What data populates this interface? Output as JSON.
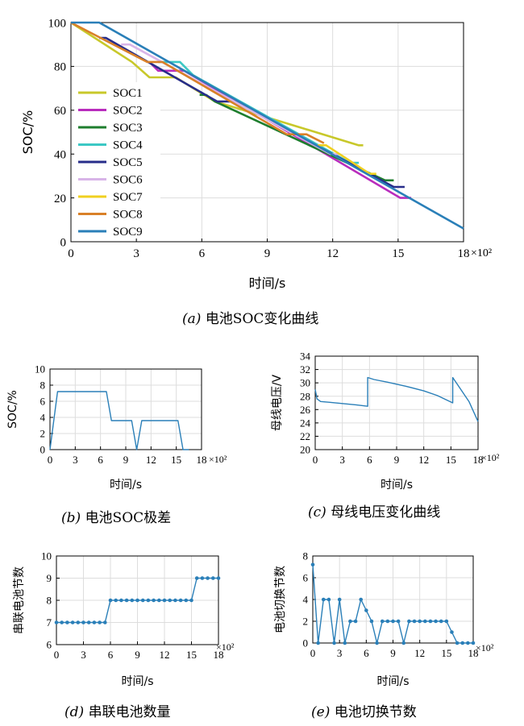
{
  "captions": {
    "a": {
      "tag": "(a)",
      "text": "电池SOC变化曲线"
    },
    "b": {
      "tag": "(b)",
      "text": "电池SOC极差"
    },
    "c": {
      "tag": "(c)",
      "text": "母线电压变化曲线"
    },
    "d": {
      "tag": "(d)",
      "text": "串联电池数量"
    },
    "e": {
      "tag": "(e)",
      "text": "电池切换节数"
    }
  },
  "colors": {
    "SOC1": "#c8c82a",
    "SOC2": "#b92dbd",
    "SOC3": "#1e7e2e",
    "SOC4": "#3cc8c4",
    "SOC5": "#272d8a",
    "SOC6": "#d8b4e8",
    "SOC7": "#f0d020",
    "SOC8": "#d98028",
    "SOC9": "#2a7fb8",
    "line": "#2a7fb8"
  },
  "chart_data": [
    {
      "id": "a",
      "type": "line",
      "xlabel": "时间/s",
      "ylabel": "SOC/%",
      "x_multiplier": "×10²",
      "xlim": [
        0,
        18
      ],
      "ylim": [
        0,
        100
      ],
      "xticks": [
        0,
        3,
        6,
        9,
        12,
        15,
        18
      ],
      "yticks": [
        0,
        20,
        40,
        60,
        80,
        100
      ],
      "grid": true,
      "legend": "upper-left",
      "series": [
        {
          "name": "SOC1",
          "x": [
            0,
            2.8,
            3.6,
            4.8,
            6.6,
            13.2,
            13.4
          ],
          "y": [
            100,
            82,
            75,
            75,
            64,
            44,
            44
          ]
        },
        {
          "name": "SOC2",
          "x": [
            3.6,
            4.0,
            5.2,
            15.1,
            15.6
          ],
          "y": [
            82,
            78,
            78,
            20,
            20
          ]
        },
        {
          "name": "SOC3",
          "x": [
            5.9,
            6.2,
            6.6,
            14.4,
            14.8
          ],
          "y": [
            67,
            67,
            64,
            28,
            28
          ]
        },
        {
          "name": "SOC4",
          "x": [
            4.0,
            5.0,
            5.6,
            12.8,
            13.2
          ],
          "y": [
            82,
            82,
            76,
            36,
            36
          ]
        },
        {
          "name": "SOC5",
          "x": [
            1.3,
            1.6,
            6.7,
            7.5,
            14.8,
            15.3
          ],
          "y": [
            93,
            93,
            64,
            64,
            25,
            25
          ]
        },
        {
          "name": "SOC6",
          "x": [
            2.3,
            2.7,
            11.9,
            12.3
          ],
          "y": [
            90,
            90,
            40,
            40
          ]
        },
        {
          "name": "SOC7",
          "x": [
            11.3,
            11.7,
            13.7,
            14.0
          ],
          "y": [
            44,
            44,
            31,
            31
          ]
        },
        {
          "name": "SOC8",
          "x": [
            0,
            3.5,
            4.2,
            9.9,
            10.8,
            11.6
          ],
          "y": [
            100,
            82,
            82,
            49,
            49,
            45
          ]
        },
        {
          "name": "SOC9",
          "x": [
            0,
            1.3,
            18
          ],
          "y": [
            100,
            100,
            6
          ]
        }
      ]
    },
    {
      "id": "b",
      "type": "line",
      "xlabel": "时间/s",
      "ylabel": "SOC/%",
      "x_multiplier": "×10²",
      "xlim": [
        0,
        18
      ],
      "ylim": [
        0,
        10
      ],
      "xticks": [
        0,
        3,
        6,
        9,
        12,
        15,
        18
      ],
      "yticks": [
        0,
        2,
        4,
        6,
        8,
        10
      ],
      "grid": true,
      "series": [
        {
          "x": [
            0,
            0.9,
            6.7,
            7.3,
            9.7,
            10.3,
            10.9,
            15.2,
            15.8,
            16.5
          ],
          "y": [
            0,
            7.2,
            7.2,
            3.6,
            3.6,
            0,
            3.6,
            3.6,
            0,
            0
          ]
        }
      ]
    },
    {
      "id": "c",
      "type": "line",
      "xlabel": "时间/s",
      "ylabel": "母线电压/V",
      "x_multiplier": "×10²",
      "xlim": [
        0,
        18
      ],
      "ylim": [
        20,
        34
      ],
      "xticks": [
        0,
        3,
        6,
        9,
        12,
        15,
        18
      ],
      "yticks": [
        20,
        22,
        24,
        26,
        28,
        30,
        32,
        34
      ],
      "grid": true,
      "series": [
        {
          "x": [
            0,
            0.2,
            0.6,
            1.5,
            3,
            4.5,
            5.8,
            5.8,
            6.5,
            8,
            10,
            12,
            13.5,
            15.2,
            15.2,
            16,
            17,
            18
          ],
          "y": [
            29,
            27.6,
            27.2,
            27.1,
            26.9,
            26.7,
            26.5,
            30.8,
            30.5,
            30.1,
            29.5,
            28.8,
            28.1,
            27.0,
            30.8,
            29.2,
            27.2,
            24.2
          ]
        }
      ]
    },
    {
      "id": "d",
      "type": "line",
      "xlabel": "时间/s",
      "ylabel": "串联电池节数",
      "x_multiplier": "×10²",
      "xlim": [
        0,
        18
      ],
      "ylim": [
        6,
        10
      ],
      "xticks": [
        0,
        3,
        6,
        9,
        12,
        15,
        18
      ],
      "yticks": [
        6,
        7,
        8,
        9,
        10
      ],
      "grid": true,
      "series": [
        {
          "x": [
            0,
            0.6,
            1.2,
            1.8,
            2.4,
            3.0,
            3.6,
            4.2,
            4.8,
            5.4,
            6.0,
            6.6,
            7.2,
            7.8,
            8.4,
            9.0,
            9.6,
            10.2,
            10.8,
            11.4,
            12.0,
            12.6,
            13.2,
            13.8,
            14.4,
            15.0,
            15.6,
            16.2,
            16.8,
            17.4,
            18.0
          ],
          "y": [
            7,
            7,
            7,
            7,
            7,
            7,
            7,
            7,
            7,
            7,
            8,
            8,
            8,
            8,
            8,
            8,
            8,
            8,
            8,
            8,
            8,
            8,
            8,
            8,
            8,
            8,
            9,
            9,
            9,
            9,
            9
          ]
        }
      ]
    },
    {
      "id": "e",
      "type": "line",
      "xlabel": "时间/s",
      "ylabel": "电池切换节数",
      "x_multiplier": "×10²",
      "xlim": [
        0,
        18
      ],
      "ylim": [
        0,
        8
      ],
      "xticks": [
        0,
        3,
        6,
        9,
        12,
        15,
        18
      ],
      "yticks": [
        0,
        2,
        4,
        6,
        8
      ],
      "grid": true,
      "series": [
        {
          "x": [
            0,
            0.6,
            1.2,
            1.8,
            2.4,
            3.0,
            3.6,
            4.2,
            4.8,
            5.4,
            6.0,
            6.6,
            7.2,
            7.8,
            8.4,
            9.0,
            9.6,
            10.2,
            10.8,
            11.4,
            12.0,
            12.6,
            13.2,
            13.8,
            14.4,
            15.0,
            15.6,
            16.2,
            16.8,
            17.4,
            18.0
          ],
          "y": [
            7.2,
            0,
            4,
            4,
            0,
            4,
            0,
            2,
            2,
            4,
            3,
            2,
            0,
            2,
            2,
            2,
            2,
            0,
            2,
            2,
            2,
            2,
            2,
            2,
            2,
            2,
            1,
            0,
            0,
            0,
            0
          ]
        }
      ]
    }
  ]
}
